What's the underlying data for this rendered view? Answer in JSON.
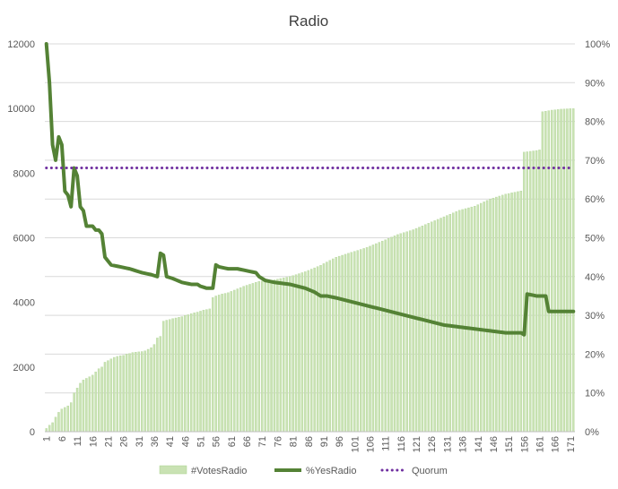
{
  "chart_data": {
    "type": "bar",
    "title": "Radio",
    "xlabel": "",
    "ylabel": "",
    "ylim": [
      0,
      12000
    ],
    "y2lim": [
      0,
      1
    ],
    "y_ticks": [
      "0",
      "2000",
      "4000",
      "6000",
      "8000",
      "10000",
      "12000"
    ],
    "y2_ticks": [
      "0%",
      "10%",
      "20%",
      "30%",
      "40%",
      "50%",
      "60%",
      "70%",
      "80%",
      "90%",
      "100%"
    ],
    "x_range": [
      1,
      172
    ],
    "x_ticks": [
      "1",
      "6",
      "11",
      "16",
      "21",
      "26",
      "31",
      "36",
      "41",
      "46",
      "51",
      "56",
      "61",
      "66",
      "71",
      "76",
      "81",
      "86",
      "91",
      "96",
      "101",
      "106",
      "111",
      "116",
      "121",
      "126",
      "131",
      "136",
      "141",
      "146",
      "151",
      "156",
      "161",
      "166",
      "171"
    ],
    "grid": true,
    "legend_position": "bottom",
    "series": [
      {
        "name": "#VotesRadio",
        "kind": "bar",
        "axis": "left",
        "color": "#c9e2b3",
        "stroke": "#a9d18e",
        "anchors": [
          [
            1,
            100
          ],
          [
            2,
            200
          ],
          [
            3,
            280
          ],
          [
            4,
            450
          ],
          [
            5,
            600
          ],
          [
            6,
            700
          ],
          [
            7,
            750
          ],
          [
            8,
            800
          ],
          [
            9,
            900
          ],
          [
            10,
            1200
          ],
          [
            11,
            1350
          ],
          [
            12,
            1500
          ],
          [
            13,
            1600
          ],
          [
            14,
            1650
          ],
          [
            15,
            1700
          ],
          [
            16,
            1750
          ],
          [
            17,
            1850
          ],
          [
            18,
            1950
          ],
          [
            19,
            2000
          ],
          [
            20,
            2150
          ],
          [
            21,
            2200
          ],
          [
            22,
            2250
          ],
          [
            23,
            2300
          ],
          [
            24,
            2330
          ],
          [
            25,
            2350
          ],
          [
            26,
            2360
          ],
          [
            27,
            2400
          ],
          [
            28,
            2420
          ],
          [
            29,
            2450
          ],
          [
            30,
            2460
          ],
          [
            31,
            2470
          ],
          [
            32,
            2480
          ],
          [
            33,
            2500
          ],
          [
            34,
            2550
          ],
          [
            35,
            2600
          ],
          [
            36,
            2700
          ],
          [
            37,
            2900
          ],
          [
            38,
            2950
          ],
          [
            39,
            3420
          ],
          [
            40,
            3450
          ],
          [
            41,
            3470
          ],
          [
            42,
            3500
          ],
          [
            43,
            3520
          ],
          [
            44,
            3540
          ],
          [
            45,
            3560
          ],
          [
            46,
            3600
          ],
          [
            47,
            3620
          ],
          [
            48,
            3650
          ],
          [
            49,
            3680
          ],
          [
            50,
            3700
          ],
          [
            51,
            3730
          ],
          [
            52,
            3760
          ],
          [
            53,
            3780
          ],
          [
            54,
            3800
          ],
          [
            55,
            4150
          ],
          [
            56,
            4200
          ],
          [
            57,
            4230
          ],
          [
            58,
            4260
          ],
          [
            59,
            4280
          ],
          [
            60,
            4300
          ],
          [
            65,
            4500
          ],
          [
            70,
            4650
          ],
          [
            75,
            4700
          ],
          [
            80,
            4800
          ],
          [
            85,
            4950
          ],
          [
            90,
            5150
          ],
          [
            95,
            5400
          ],
          [
            100,
            5550
          ],
          [
            105,
            5700
          ],
          [
            110,
            5900
          ],
          [
            115,
            6100
          ],
          [
            120,
            6250
          ],
          [
            125,
            6450
          ],
          [
            130,
            6650
          ],
          [
            135,
            6850
          ],
          [
            140,
            6980
          ],
          [
            145,
            7200
          ],
          [
            150,
            7350
          ],
          [
            155,
            7450
          ],
          [
            156,
            8650
          ],
          [
            160,
            8700
          ],
          [
            161,
            8720
          ],
          [
            162,
            9900
          ],
          [
            165,
            9950
          ],
          [
            168,
            9980
          ],
          [
            172,
            10000
          ]
        ]
      },
      {
        "name": "%YesRadio",
        "kind": "line",
        "axis": "right",
        "color": "#548235",
        "anchors": [
          [
            1,
            1.0
          ],
          [
            2,
            0.9
          ],
          [
            3,
            0.74
          ],
          [
            4,
            0.7
          ],
          [
            5,
            0.76
          ],
          [
            6,
            0.74
          ],
          [
            7,
            0.62
          ],
          [
            8,
            0.61
          ],
          [
            9,
            0.58
          ],
          [
            10,
            0.68
          ],
          [
            11,
            0.66
          ],
          [
            12,
            0.58
          ],
          [
            13,
            0.57
          ],
          [
            14,
            0.53
          ],
          [
            15,
            0.53
          ],
          [
            16,
            0.53
          ],
          [
            17,
            0.52
          ],
          [
            18,
            0.52
          ],
          [
            19,
            0.51
          ],
          [
            20,
            0.45
          ],
          [
            21,
            0.44
          ],
          [
            22,
            0.43
          ],
          [
            25,
            0.425
          ],
          [
            28,
            0.42
          ],
          [
            32,
            0.41
          ],
          [
            35,
            0.405
          ],
          [
            37,
            0.4
          ],
          [
            38,
            0.46
          ],
          [
            39,
            0.455
          ],
          [
            40,
            0.4
          ],
          [
            42,
            0.395
          ],
          [
            45,
            0.385
          ],
          [
            48,
            0.38
          ],
          [
            50,
            0.38
          ],
          [
            51,
            0.375
          ],
          [
            53,
            0.37
          ],
          [
            55,
            0.37
          ],
          [
            56,
            0.43
          ],
          [
            57,
            0.425
          ],
          [
            60,
            0.42
          ],
          [
            63,
            0.42
          ],
          [
            66,
            0.415
          ],
          [
            69,
            0.41
          ],
          [
            70,
            0.4
          ],
          [
            72,
            0.39
          ],
          [
            75,
            0.385
          ],
          [
            80,
            0.38
          ],
          [
            85,
            0.37
          ],
          [
            88,
            0.36
          ],
          [
            90,
            0.35
          ],
          [
            92,
            0.35
          ],
          [
            95,
            0.345
          ],
          [
            100,
            0.335
          ],
          [
            105,
            0.325
          ],
          [
            110,
            0.315
          ],
          [
            115,
            0.305
          ],
          [
            120,
            0.295
          ],
          [
            125,
            0.285
          ],
          [
            130,
            0.275
          ],
          [
            135,
            0.27
          ],
          [
            140,
            0.265
          ],
          [
            145,
            0.26
          ],
          [
            150,
            0.255
          ],
          [
            155,
            0.255
          ],
          [
            156,
            0.25
          ],
          [
            157,
            0.355
          ],
          [
            160,
            0.35
          ],
          [
            163,
            0.35
          ],
          [
            164,
            0.31
          ],
          [
            168,
            0.31
          ],
          [
            172,
            0.31
          ]
        ]
      },
      {
        "name": "Quorum",
        "kind": "line",
        "axis": "right",
        "style": "dotted",
        "color": "#7030a0",
        "anchors": [
          [
            1,
            0.68
          ],
          [
            172,
            0.68
          ]
        ]
      }
    ]
  }
}
